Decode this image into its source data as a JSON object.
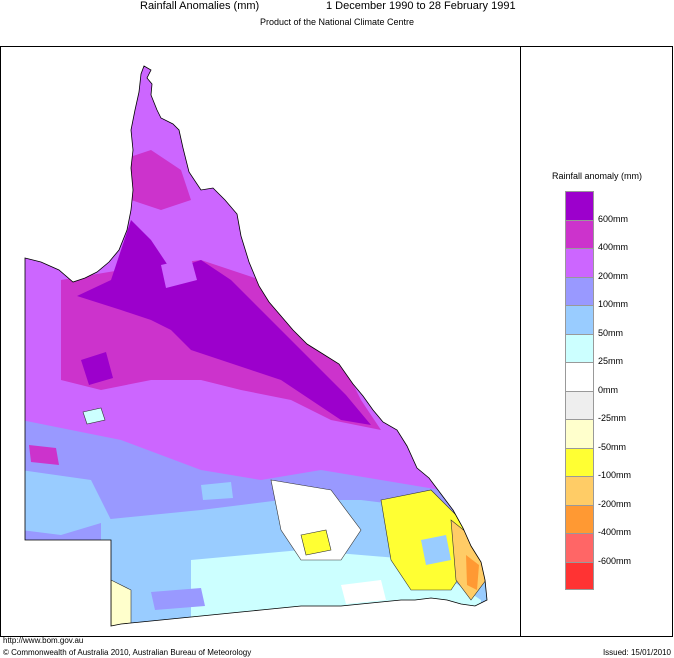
{
  "header": {
    "title": "Rainfall Anomalies (mm)",
    "period": "1 December 1990 to 28 February 1991",
    "subtitle": "Product of the National Climate Centre"
  },
  "legend": {
    "title": "Rainfall anomaly (mm)",
    "colors": [
      "#9c00cc",
      "#cc33cc",
      "#cc66ff",
      "#9999ff",
      "#99ccff",
      "#ccffff",
      "#ffffff",
      "#eeeeee",
      "#ffffcc",
      "#ffff33",
      "#ffcc66",
      "#ff9933",
      "#ff6666",
      "#ff3333"
    ],
    "labels": [
      "600mm",
      "400mm",
      "200mm",
      "100mm",
      "50mm",
      "25mm",
      "0mm",
      "-25mm",
      "-50mm",
      "-100mm",
      "-200mm",
      "-400mm",
      "-600mm"
    ]
  },
  "footer": {
    "url": "http://www.bom.gov.au",
    "copyright": "© Commonwealth of Australia 2010, Australian Bureau of Meteorology",
    "issued": "Issued: 15/01/2010"
  }
}
